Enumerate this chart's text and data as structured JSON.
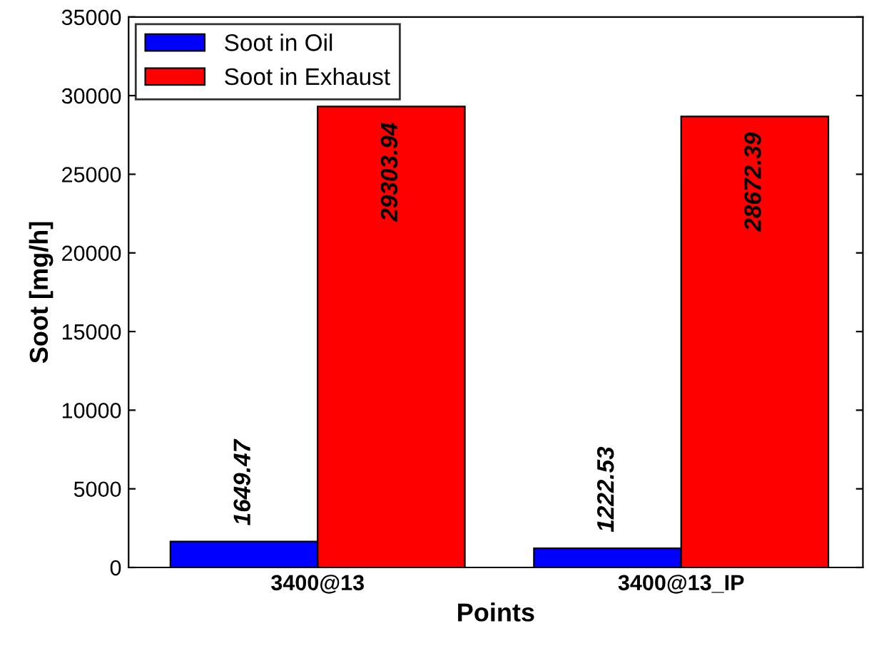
{
  "chart_data": {
    "type": "bar",
    "xlabel": "Points",
    "ylabel": "Soot [mg/h]",
    "categories": [
      "3400@13",
      "3400@13_IP"
    ],
    "series": [
      {
        "name": "Soot in Oil",
        "color": "#0000ff",
        "values": [
          1649.47,
          1222.53
        ]
      },
      {
        "name": "Soot in Exhaust",
        "color": "#ff0000",
        "values": [
          29303.94,
          28672.39
        ]
      }
    ],
    "ylim": [
      0,
      35000
    ],
    "yticks": [
      0,
      5000,
      10000,
      15000,
      20000,
      25000,
      30000,
      35000
    ],
    "data_labels": true,
    "legend": "top left",
    "grid": false
  }
}
